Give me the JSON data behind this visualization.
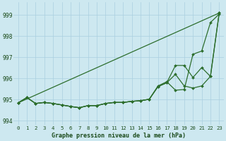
{
  "title": "Graphe pression niveau de la mer (hPa)",
  "background_color": "#cde8f0",
  "grid_color": "#aacfdf",
  "line_color": "#2d6e2d",
  "xlim": [
    -0.5,
    23.5
  ],
  "ylim": [
    993.8,
    999.6
  ],
  "yticks": [
    994,
    995,
    996,
    997,
    998,
    999
  ],
  "xticks": [
    0,
    1,
    2,
    3,
    4,
    5,
    6,
    7,
    8,
    9,
    10,
    11,
    12,
    13,
    14,
    15,
    16,
    17,
    18,
    19,
    20,
    21,
    22,
    23
  ],
  "series_with_markers": [
    {
      "x": [
        0,
        1,
        2,
        3,
        4,
        5,
        6,
        7,
        8,
        9,
        10,
        11,
        12,
        13,
        14,
        15,
        16,
        17,
        18,
        19,
        20,
        21,
        22,
        23
      ],
      "y": [
        994.85,
        995.1,
        994.82,
        994.87,
        994.82,
        994.75,
        994.68,
        994.62,
        994.72,
        994.72,
        994.82,
        994.87,
        994.87,
        994.92,
        994.95,
        995.02,
        995.62,
        995.8,
        996.62,
        996.62,
        996.05,
        996.52,
        996.1,
        999.1
      ]
    },
    {
      "x": [
        0,
        1,
        2,
        3,
        4,
        5,
        6,
        7,
        8,
        9,
        10,
        11,
        12,
        13,
        14,
        15,
        16,
        17,
        18,
        19,
        20,
        21,
        22,
        23
      ],
      "y": [
        994.85,
        995.1,
        994.82,
        994.87,
        994.82,
        994.75,
        994.68,
        994.62,
        994.72,
        994.72,
        994.82,
        994.87,
        994.87,
        994.92,
        994.95,
        995.02,
        995.62,
        995.8,
        996.2,
        995.65,
        995.55,
        995.65,
        996.1,
        999.1
      ]
    },
    {
      "x": [
        0,
        1,
        2,
        3,
        4,
        5,
        6,
        7,
        8,
        9,
        10,
        11,
        12,
        13,
        14,
        15,
        16,
        17,
        18,
        19,
        20,
        21,
        22,
        23
      ],
      "y": [
        994.85,
        995.1,
        994.82,
        994.87,
        994.82,
        994.75,
        994.68,
        994.62,
        994.72,
        994.72,
        994.82,
        994.87,
        994.87,
        994.92,
        994.95,
        995.02,
        995.65,
        995.85,
        995.45,
        995.48,
        997.15,
        997.3,
        998.65,
        999.05
      ]
    }
  ],
  "series_no_markers": [
    {
      "x": [
        0,
        23
      ],
      "y": [
        994.85,
        999.1
      ]
    }
  ]
}
